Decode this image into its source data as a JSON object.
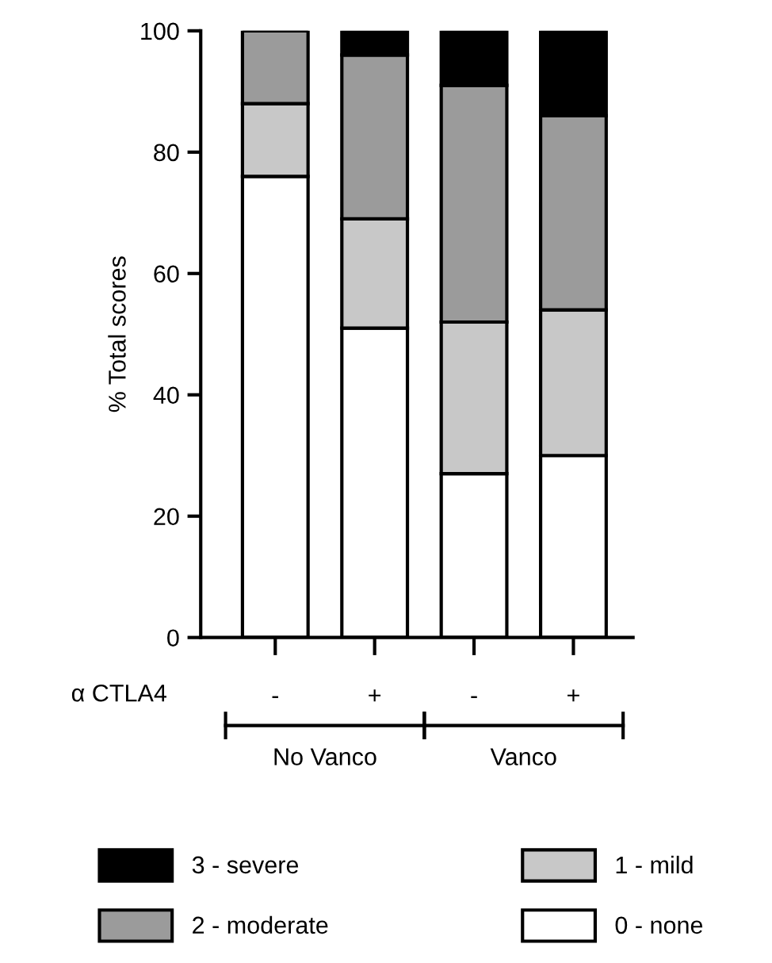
{
  "chart_data": {
    "type": "bar",
    "stacked": true,
    "ylabel": "% Total scores",
    "categories": [
      "-",
      "+",
      "-",
      "+"
    ],
    "series": [
      {
        "name": "0 - none",
        "color": "#ffffff",
        "values": [
          76,
          51,
          27,
          30
        ]
      },
      {
        "name": "1 - mild",
        "color": "#c8c8c8",
        "values": [
          12,
          18,
          25,
          24
        ]
      },
      {
        "name": "2 - moderate",
        "color": "#9b9b9b",
        "values": [
          12,
          27,
          39,
          32
        ]
      },
      {
        "name": "3 - severe",
        "color": "#000000",
        "values": [
          0,
          4,
          9,
          14
        ]
      }
    ],
    "ylim": [
      0,
      100
    ],
    "yticks": [
      0,
      20,
      40,
      60,
      80,
      100
    ],
    "annotations": [
      "α CTLA4",
      "No Vanco",
      "Vanco"
    ],
    "grid": false,
    "legend": "bottom"
  }
}
